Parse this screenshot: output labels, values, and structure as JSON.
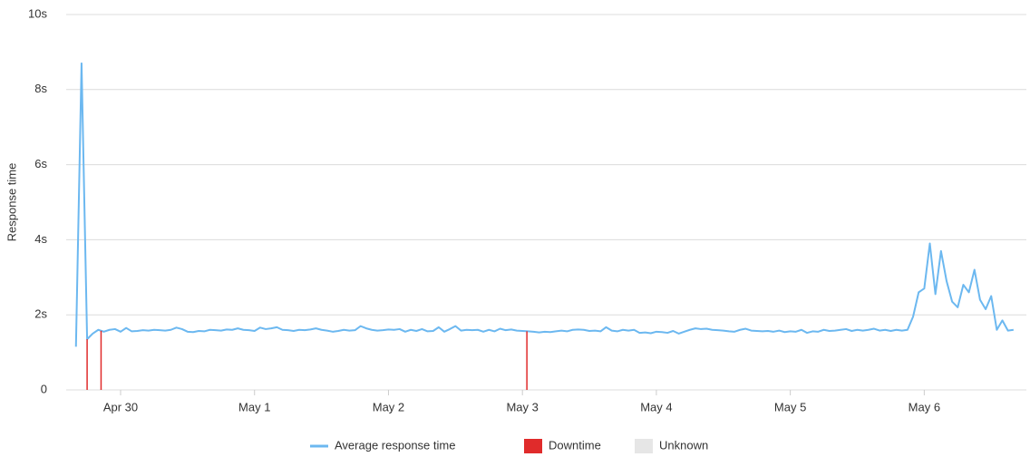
{
  "chart_data": {
    "type": "line",
    "y_label": "Response time",
    "x": [
      -8,
      -7,
      -6,
      -5,
      -4,
      -3,
      -2,
      -1,
      0,
      1,
      2,
      3,
      4,
      5,
      6,
      7,
      8,
      9,
      10,
      11,
      12,
      13,
      14,
      15,
      16,
      17,
      18,
      19,
      20,
      21,
      22,
      23,
      24,
      25,
      26,
      27,
      28,
      29,
      30,
      31,
      32,
      33,
      34,
      35,
      36,
      37,
      38,
      39,
      40,
      41,
      42,
      43,
      44,
      45,
      46,
      47,
      48,
      49,
      50,
      51,
      52,
      53,
      54,
      55,
      56,
      57,
      58,
      59,
      60,
      61,
      62,
      63,
      64,
      65,
      66,
      67,
      68,
      69,
      70,
      71,
      72,
      73,
      74,
      75,
      76,
      77,
      78,
      79,
      80,
      81,
      82,
      83,
      84,
      85,
      86,
      87,
      88,
      89,
      90,
      91,
      92,
      93,
      94,
      95,
      96,
      97,
      98,
      99,
      100,
      101,
      102,
      103,
      104,
      105,
      106,
      107,
      108,
      109,
      110,
      111,
      112,
      113,
      114,
      115,
      116,
      117,
      118,
      119,
      120,
      121,
      122,
      123,
      124,
      125,
      126,
      127,
      128,
      129,
      130,
      131,
      132,
      133,
      134,
      135,
      136,
      137,
      138,
      139,
      140,
      141,
      142,
      143,
      144,
      145,
      146,
      147,
      148,
      149,
      150,
      151,
      152,
      153,
      154,
      155,
      156,
      157,
      158,
      159,
      160
    ],
    "series": [
      {
        "name": "Average response time",
        "color": "#6cb8f0",
        "values": [
          1.15,
          8.7,
          1.35,
          1.5,
          1.6,
          1.55,
          1.6,
          1.62,
          1.55,
          1.65,
          1.56,
          1.57,
          1.59,
          1.58,
          1.6,
          1.59,
          1.58,
          1.6,
          1.66,
          1.62,
          1.55,
          1.54,
          1.57,
          1.56,
          1.6,
          1.59,
          1.58,
          1.61,
          1.6,
          1.64,
          1.6,
          1.59,
          1.57,
          1.66,
          1.62,
          1.64,
          1.67,
          1.6,
          1.59,
          1.57,
          1.6,
          1.59,
          1.61,
          1.64,
          1.6,
          1.58,
          1.55,
          1.57,
          1.6,
          1.58,
          1.59,
          1.7,
          1.64,
          1.6,
          1.58,
          1.59,
          1.61,
          1.6,
          1.62,
          1.55,
          1.6,
          1.57,
          1.62,
          1.56,
          1.57,
          1.67,
          1.55,
          1.62,
          1.7,
          1.58,
          1.6,
          1.59,
          1.6,
          1.55,
          1.6,
          1.56,
          1.63,
          1.59,
          1.61,
          1.58,
          1.57,
          1.56,
          1.55,
          1.53,
          1.55,
          1.54,
          1.56,
          1.58,
          1.56,
          1.6,
          1.61,
          1.6,
          1.57,
          1.58,
          1.56,
          1.67,
          1.58,
          1.56,
          1.6,
          1.58,
          1.6,
          1.52,
          1.53,
          1.51,
          1.55,
          1.54,
          1.52,
          1.57,
          1.5,
          1.55,
          1.6,
          1.64,
          1.62,
          1.63,
          1.6,
          1.59,
          1.58,
          1.56,
          1.55,
          1.6,
          1.63,
          1.58,
          1.57,
          1.56,
          1.57,
          1.55,
          1.58,
          1.54,
          1.56,
          1.55,
          1.6,
          1.52,
          1.56,
          1.55,
          1.6,
          1.57,
          1.58,
          1.6,
          1.62,
          1.57,
          1.6,
          1.58,
          1.6,
          1.63,
          1.58,
          1.6,
          1.57,
          1.6,
          1.58,
          1.6,
          1.95,
          2.6,
          2.7,
          3.9,
          2.55,
          3.7,
          2.9,
          2.35,
          2.2,
          2.8,
          2.6,
          3.2,
          2.4,
          2.15,
          2.5,
          1.6,
          1.85,
          1.58,
          1.6
        ]
      },
      {
        "name": "Downtime",
        "color": "#e02b2b",
        "x": [
          -6,
          -3.5,
          72.8
        ]
      },
      {
        "name": "Unknown",
        "color": "#e6e6e6"
      }
    ],
    "xlim": [
      -9.75,
      162.3
    ],
    "xticks": [
      {
        "value": 0,
        "label": "Apr 30"
      },
      {
        "value": 24,
        "label": "May 1"
      },
      {
        "value": 48,
        "label": "May 2"
      },
      {
        "value": 72,
        "label": "May 3"
      },
      {
        "value": 96,
        "label": "May 4"
      },
      {
        "value": 120,
        "label": "May 5"
      },
      {
        "value": 144,
        "label": "May 6"
      }
    ],
    "ylim": [
      0,
      10
    ],
    "yticks": [
      0,
      {
        "value": 2,
        "label": "2s"
      },
      {
        "value": 4,
        "label": "4s"
      },
      {
        "value": 6,
        "label": "6s"
      },
      {
        "value": 8,
        "label": "8s"
      },
      {
        "value": 10,
        "label": "10s"
      }
    ],
    "grid": true
  }
}
